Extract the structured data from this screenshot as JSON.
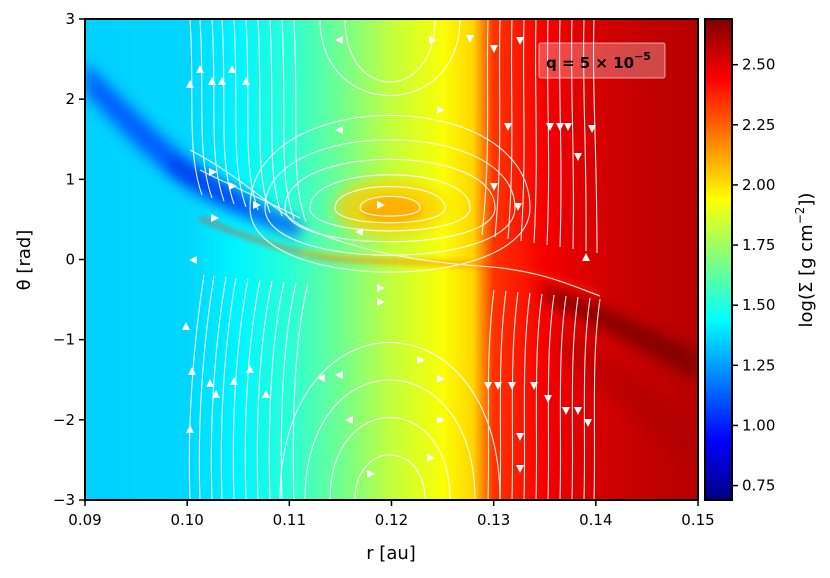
{
  "chart_data": {
    "type": "heatmap",
    "title": "",
    "xlabel": "r [au]",
    "ylabel": "θ [rad]",
    "xlim": [
      0.09,
      0.15
    ],
    "ylim": [
      -3,
      3
    ],
    "x_ticks": [
      0.09,
      0.1,
      0.11,
      0.12,
      0.13,
      0.14,
      0.15
    ],
    "x_tick_labels": [
      "0.09",
      "0.10",
      "0.11",
      "0.12",
      "0.13",
      "0.14",
      "0.15"
    ],
    "y_ticks": [
      3,
      2,
      1,
      0,
      -1,
      -2,
      -3
    ],
    "y_tick_labels": [
      "3",
      "2",
      "1",
      "0",
      "−1",
      "−2",
      "−3"
    ],
    "annotation": {
      "prefix": "q = 5 × 10",
      "exponent": "−5"
    },
    "colorbar": {
      "label_main": "log(Σ [g cm",
      "label_exp": "−2",
      "label_close": "])",
      "range": [
        0.69,
        2.69
      ],
      "ticks": [
        2.5,
        2.25,
        2.0,
        1.75,
        1.5,
        1.25,
        1.0,
        0.75
      ],
      "tick_labels": [
        "2.50",
        "2.25",
        "2.00",
        "1.75",
        "1.50",
        "1.25",
        "1.00",
        "0.75"
      ],
      "colormap": "jet"
    },
    "field_structure": {
      "background_profile_r": [
        0.09,
        0.1,
        0.105,
        0.11,
        0.115,
        0.12,
        0.125,
        0.128,
        0.13,
        0.135,
        0.14,
        0.145,
        0.15
      ],
      "background_profile_logsigma": [
        1.35,
        1.36,
        1.42,
        1.52,
        1.66,
        1.82,
        1.93,
        2.02,
        2.34,
        2.46,
        2.52,
        2.56,
        2.58
      ],
      "spiral_wake_theta_at_r": {
        "r": [
          0.09,
          0.1,
          0.11,
          0.12,
          0.13,
          0.14,
          0.15
        ],
        "theta": [
          2.4,
          1.2,
          0.2,
          0.0,
          -0.15,
          -0.55,
          -1.3
        ]
      },
      "vortex_center": {
        "r": 0.12,
        "theta": 0.6
      }
    }
  }
}
